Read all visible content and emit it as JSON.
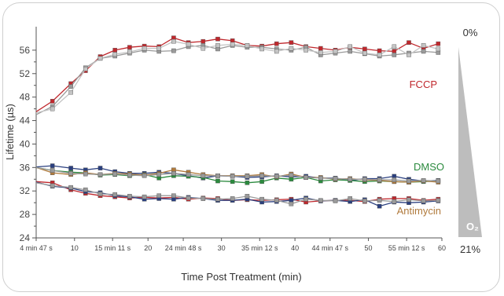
{
  "chart_data": {
    "type": "line",
    "xlabel": "Time Post Treatment (min)",
    "ylabel": "Lifetime (µs)",
    "ylim": [
      24,
      60
    ],
    "xlim": [
      4.78,
      60
    ],
    "y_ticks": [
      24,
      28,
      32,
      36,
      40,
      44,
      48,
      52,
      56
    ],
    "x_ticks": [
      {
        "x": 4.78,
        "label": "4 min 47 s"
      },
      {
        "x": 10,
        "label": "10"
      },
      {
        "x": 15.18,
        "label": "15 min 11 s"
      },
      {
        "x": 20,
        "label": "20"
      },
      {
        "x": 24.8,
        "label": "24 min 48 s"
      },
      {
        "x": 30,
        "label": "30"
      },
      {
        "x": 35.2,
        "label": "35 min 12 s"
      },
      {
        "x": 40,
        "label": "40"
      },
      {
        "x": 44.78,
        "label": "44 min 47 s"
      },
      {
        "x": 50,
        "label": "50"
      },
      {
        "x": 55.2,
        "label": "55 min 12 s"
      },
      {
        "x": 60,
        "label": "60"
      }
    ],
    "x": [
      4.78,
      7,
      9.5,
      11.5,
      13.5,
      15.5,
      17.5,
      19.5,
      21.5,
      23.5,
      25.5,
      27.5,
      29.5,
      31.5,
      33.5,
      35.5,
      37.5,
      39.5,
      41.5,
      43.5,
      45.5,
      47.5,
      49.5,
      51.5,
      53.5,
      55.5,
      57.5,
      59.5
    ],
    "groups": [
      {
        "label": "FCCP",
        "label_color": "#c0282d",
        "series": [
          {
            "color": "#c0282d",
            "values": [
              45.5,
              47.3,
              50.3,
              52.5,
              54.9,
              56.0,
              56.5,
              56.7,
              56.6,
              58.1,
              57.3,
              57.5,
              57.9,
              57.6,
              56.8,
              56.7,
              57.1,
              57.3,
              56.6,
              56.3,
              56.0,
              56.5,
              56.2,
              55.9,
              55.8,
              57.3,
              56.3,
              57.1
            ]
          },
          {
            "color": "#9a9a9a",
            "values": [
              45.0,
              46.4,
              49.8,
              53.0,
              54.6,
              55.0,
              55.5,
              56.0,
              55.8,
              55.9,
              56.6,
              56.8,
              56.2,
              56.8,
              56.5,
              56.5,
              56.2,
              56.0,
              56.5,
              55.2,
              55.5,
              55.8,
              55.4,
              55.0,
              55.2,
              55.5,
              55.8,
              55.6
            ]
          },
          {
            "color": "#c4c4c4",
            "values": [
              45.3,
              46.0,
              48.8,
              52.8,
              54.6,
              55.3,
              55.7,
              56.3,
              56.3,
              57.5,
              57.0,
              56.3,
              56.8,
              57.0,
              56.8,
              56.2,
              55.8,
              56.3,
              56.0,
              55.6,
              55.8,
              56.6,
              55.5,
              55.2,
              56.6,
              55.2,
              56.8,
              56.2
            ]
          }
        ]
      },
      {
        "label": "DMSO",
        "label_color": "#2b8a3e",
        "series": [
          {
            "color": "#2a3f7f",
            "values": [
              36.1,
              36.3,
              35.9,
              35.6,
              35.9,
              35.3,
              35.0,
              35.0,
              35.2,
              35.0,
              34.6,
              34.2,
              34.6,
              34.5,
              34.3,
              34.4,
              34.6,
              34.4,
              34.5,
              34.2,
              34.2,
              33.8,
              34.1,
              34.1,
              34.5,
              34.0,
              33.7,
              33.8
            ]
          },
          {
            "color": "#2b8a3e",
            "values": [
              36.0,
              35.5,
              35.2,
              35.1,
              34.7,
              34.8,
              34.6,
              34.8,
              34.2,
              34.6,
              34.5,
              34.3,
              33.7,
              33.6,
              33.4,
              33.6,
              34.2,
              34.0,
              34.3,
              33.7,
              33.9,
              33.8,
              33.6,
              33.7,
              33.6,
              33.5,
              33.6,
              33.7
            ]
          },
          {
            "color": "#b07a3c",
            "values": [
              36.0,
              35.1,
              34.8,
              35.1,
              34.8,
              35.0,
              34.9,
              34.7,
              35.0,
              35.6,
              35.2,
              34.8,
              34.6,
              34.6,
              34.6,
              34.8,
              34.4,
              34.9,
              34.3,
              34.3,
              34.0,
              34.1,
              33.9,
              33.8,
              33.6,
              33.5,
              33.7,
              33.5
            ]
          },
          {
            "color": "#9a9a9a",
            "values": [
              36.0,
              35.5,
              35.0,
              34.9,
              34.8,
              34.9,
              34.7,
              34.6,
              34.8,
              35.0,
              34.8,
              34.6,
              34.6,
              34.5,
              34.5,
              34.6,
              34.5,
              34.7,
              34.3,
              34.2,
              34.1,
              34.0,
              34.0,
              33.9,
              33.9,
              33.7,
              33.8,
              33.7
            ]
          }
        ]
      },
      {
        "label": "Antimycin",
        "label_color": "#b07a3c",
        "series": [
          {
            "color": "#c0282d",
            "values": [
              33.6,
              33.4,
              32.2,
              31.6,
              31.2,
              31.0,
              30.8,
              30.9,
              30.8,
              30.9,
              30.6,
              30.8,
              30.7,
              30.4,
              30.5,
              30.4,
              30.5,
              30.6,
              30.1,
              30.3,
              30.4,
              30.4,
              30.2,
              30.6,
              30.7,
              30.7,
              30.4,
              30.6
            ]
          },
          {
            "color": "#2a3f7f",
            "values": [
              33.5,
              32.8,
              32.5,
              31.9,
              31.7,
              31.2,
              31.0,
              30.6,
              30.7,
              30.6,
              30.9,
              30.7,
              30.4,
              30.4,
              30.6,
              30.1,
              30.2,
              30.4,
              30.8,
              30.3,
              30.4,
              30.2,
              30.5,
              29.4,
              30.1,
              30.0,
              30.1,
              30.3
            ]
          },
          {
            "color": "#9a9a9a",
            "values": [
              33.4,
              32.9,
              32.6,
              32.2,
              31.5,
              31.4,
              31.1,
              31.0,
              31.2,
              31.2,
              30.8,
              30.7,
              30.6,
              30.7,
              31.1,
              30.6,
              30.4,
              29.8,
              30.6,
              30.4,
              30.3,
              30.7,
              30.3,
              30.4,
              30.2,
              30.5,
              30.3,
              30.4
            ]
          }
        ]
      }
    ],
    "oxygen_scale": {
      "top_label": "0%",
      "bottom_label": "21%",
      "wedge_label": "O₂"
    }
  }
}
